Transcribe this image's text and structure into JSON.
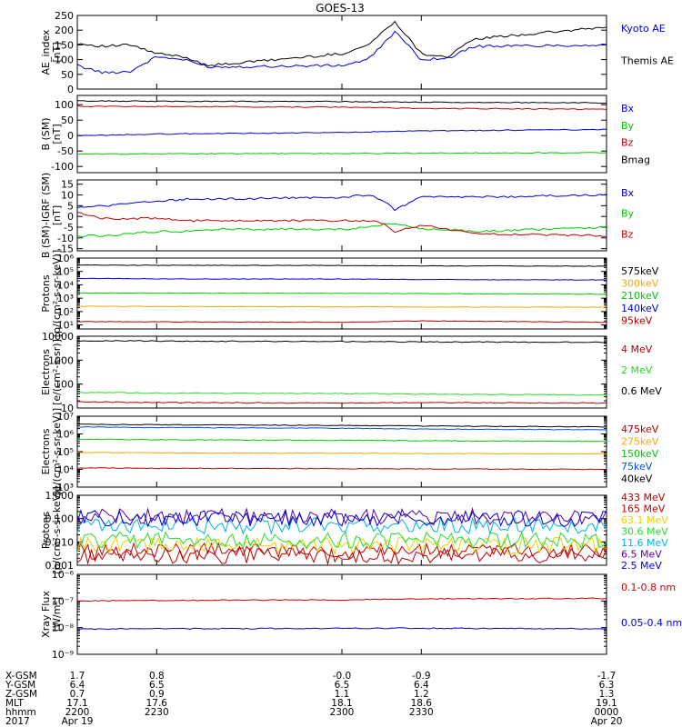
{
  "title": "GOES-13",
  "colors": {
    "black": "#000000",
    "blue": "#0000d8",
    "red": "#c80000",
    "green": "#00c800",
    "orange": "#ffa500",
    "cyan": "#00b4e6",
    "yellow": "#e6d200",
    "purple": "#5a00a0",
    "darkred": "#b40000",
    "lightgreen": "#28dc28",
    "royal": "#0050e6"
  },
  "footer": {
    "rows": [
      {
        "label": "X-GSM",
        "values": [
          "1.7",
          "0.8",
          "-0.0",
          "-0.9",
          "-1.7"
        ]
      },
      {
        "label": "Y-GSM",
        "values": [
          "6.4",
          "6.5",
          "6.5",
          "6.4",
          "6.3"
        ]
      },
      {
        "label": "Z-GSM",
        "values": [
          "0.7",
          "0.9",
          "1.1",
          "1.2",
          "1.3"
        ]
      },
      {
        "label": "MLT",
        "values": [
          "17.1",
          "17.6",
          "18.1",
          "18.6",
          "19.1"
        ]
      },
      {
        "label": "hhmm",
        "values": [
          "2200",
          "2230",
          "2300",
          "2330",
          "0000"
        ]
      },
      {
        "label": "2017",
        "values": [
          "Apr 19",
          "",
          "",
          "",
          "Apr 20"
        ]
      }
    ]
  },
  "chart_data": [
    {
      "type": "line",
      "ylabel": "AE_index [nT]",
      "scale": "linear",
      "ylim": [
        0,
        250
      ],
      "ticks": [
        0,
        50,
        100,
        150,
        200,
        250
      ],
      "tick_labels": [
        "0",
        "50",
        "100",
        "150",
        "200",
        "250"
      ],
      "x": [
        2200,
        2210,
        2220,
        2230,
        2240,
        2250,
        2300,
        2310,
        2320,
        2330,
        2340,
        2350,
        2400
      ],
      "series": [
        {
          "name": "Kyoto AE",
          "color": "blue",
          "values": [
            80,
            55,
            60,
            110,
            100,
            75,
            80,
            100,
            195,
            100,
            105,
            145,
            150
          ]
        },
        {
          "name": "Themis AE",
          "color": "black",
          "values": [
            155,
            145,
            150,
            120,
            110,
            80,
            120,
            150,
            230,
            120,
            110,
            170,
            210
          ]
        }
      ]
    },
    {
      "type": "line",
      "ylabel": "B (SM) [nT]",
      "scale": "linear",
      "ylim": [
        -120,
        130
      ],
      "ticks": [
        -100,
        -50,
        0,
        50,
        100
      ],
      "tick_labels": [
        "-100",
        "-50",
        "0",
        "50",
        "100"
      ],
      "x": [
        2200,
        2230,
        2300,
        2330,
        2400
      ],
      "series": [
        {
          "name": "Bx",
          "color": "blue",
          "values": [
            -1,
            5,
            10,
            15,
            20
          ]
        },
        {
          "name": "By",
          "color": "green",
          "values": [
            -60,
            -59,
            -58,
            -57,
            -55
          ]
        },
        {
          "name": "Bz",
          "color": "red",
          "values": [
            95,
            94,
            92,
            88,
            85
          ]
        },
        {
          "name": "Bmag",
          "color": "black",
          "values": [
            112,
            111,
            110,
            108,
            106
          ]
        }
      ]
    },
    {
      "type": "line",
      "ylabel": "B (SM)-IGRF (SM) [nT]",
      "scale": "linear",
      "ylim": [
        -16,
        17
      ],
      "ticks": [
        -15,
        -10,
        -5,
        0,
        5,
        10,
        15
      ],
      "tick_labels": [
        "-15",
        "-10",
        "-5",
        "0",
        "5",
        "10",
        "15"
      ],
      "x": [
        2200,
        2210,
        2220,
        2230,
        2240,
        2250,
        2300,
        2310,
        2315,
        2320,
        2330,
        2340,
        2350,
        2400
      ],
      "series": [
        {
          "name": "Bx",
          "color": "blue",
          "values": [
            4,
            5,
            6,
            7,
            8,
            8,
            9,
            10,
            8,
            3,
            9,
            9,
            9,
            10
          ]
        },
        {
          "name": "By",
          "color": "green",
          "values": [
            -9,
            -9,
            -8,
            -7,
            -7,
            -6,
            -6,
            -5,
            -4,
            -3,
            -6,
            -6,
            -7,
            -5
          ]
        },
        {
          "name": "Bz",
          "color": "red",
          "values": [
            2,
            -1,
            -1,
            -1,
            -2,
            -2,
            -2,
            -2,
            -3,
            -7,
            -4,
            -6,
            -8,
            -9
          ]
        }
      ]
    },
    {
      "type": "line",
      "ylabel": "Protons [p/(cm²-s-sr-keV)]",
      "scale": "log",
      "ylim": [
        5,
        1000000
      ],
      "ticks": [
        10,
        100,
        1000,
        10000,
        100000,
        1000000
      ],
      "tick_labels": [
        "10¹",
        "10²",
        "10³",
        "10⁴",
        "10⁵",
        "10⁶"
      ],
      "x": [
        2200,
        2230,
        2300,
        2330,
        2400
      ],
      "series": [
        {
          "name": "575keV",
          "color": "black",
          "values": [
            300000,
            290000,
            280000,
            260000,
            250000
          ]
        },
        {
          "name": "300keV",
          "color": "orange",
          "values": [
            250,
            240,
            230,
            220,
            210
          ]
        },
        {
          "name": "210keV",
          "color": "green",
          "values": [
            2500,
            2400,
            2300,
            2200,
            2000
          ]
        },
        {
          "name": "140keV",
          "color": "blue",
          "values": [
            30000,
            28000,
            27000,
            25000,
            23000
          ]
        },
        {
          "name": "95keV",
          "color": "darkred",
          "values": [
            18,
            17,
            16,
            20,
            16
          ]
        }
      ]
    },
    {
      "type": "line",
      "ylabel": "Electrons [e/(cm²-s-sr)]",
      "scale": "log",
      "ylim": [
        10,
        10000
      ],
      "ticks": [
        10,
        100,
        1000,
        10000
      ],
      "tick_labels": [
        "10",
        "100",
        "1000",
        "10000"
      ],
      "x": [
        2200,
        2230,
        2300,
        2330,
        2400
      ],
      "series": [
        {
          "name": "4 MeV",
          "color": "darkred",
          "values": [
            18,
            17,
            16,
            17,
            16
          ]
        },
        {
          "name": "2 MeV",
          "color": "lightgreen",
          "values": [
            45,
            42,
            40,
            38,
            35
          ]
        },
        {
          "name": "0.6 MeV",
          "color": "black",
          "values": [
            6500,
            6300,
            6000,
            5800,
            5600
          ]
        }
      ]
    },
    {
      "type": "line",
      "ylabel": "Electrons [e/(cm²-s-sr-keV)]",
      "scale": "log",
      "ylim": [
        1000,
        10000000
      ],
      "ticks": [
        1000,
        10000,
        100000,
        1000000,
        10000000
      ],
      "tick_labels": [
        "10³",
        "10⁴",
        "10⁵",
        "10⁶",
        "10⁷"
      ],
      "x": [
        2200,
        2230,
        2300,
        2330,
        2400
      ],
      "series": [
        {
          "name": "475keV",
          "color": "darkred",
          "values": [
            12000,
            11500,
            11000,
            10500,
            10000
          ]
        },
        {
          "name": "275keV",
          "color": "orange",
          "values": [
            90000,
            85000,
            82000,
            78000,
            75000
          ]
        },
        {
          "name": "150keV",
          "color": "green",
          "values": [
            500000,
            470000,
            440000,
            410000,
            380000
          ]
        },
        {
          "name": "75keV",
          "color": "royal",
          "values": [
            2500000,
            2300000,
            2100000,
            1900000,
            1700000
          ]
        },
        {
          "name": "40keV",
          "color": "black",
          "values": [
            3500000,
            3300000,
            3000000,
            2800000,
            2500000
          ]
        }
      ]
    },
    {
      "type": "line",
      "ylabel": "Protons [p/(cm²-s-sr-keV)]",
      "scale": "log",
      "ylim": [
        0.001,
        1
      ],
      "ticks": [
        0.001,
        0.01,
        0.1,
        1
      ],
      "tick_labels": [
        "0.001",
        "0.010",
        "0.100",
        "1.000"
      ],
      "x": [
        2200,
        2230,
        2300,
        2330,
        2400
      ],
      "series": [
        {
          "name": "433 MeV",
          "color": "darkred",
          "values": [
            0.0025,
            0.0025,
            0.0025,
            0.0025,
            0.0025
          ]
        },
        {
          "name": "165 MeV",
          "color": "red",
          "values": [
            0.004,
            0.004,
            0.004,
            0.004,
            0.004
          ]
        },
        {
          "name": "63.1 MeV",
          "color": "yellow",
          "values": [
            0.007,
            0.007,
            0.007,
            0.007,
            0.007
          ]
        },
        {
          "name": "30.6 MeV",
          "color": "lightgreen",
          "values": [
            0.012,
            0.012,
            0.012,
            0.012,
            0.012
          ]
        },
        {
          "name": "11.6 MeV",
          "color": "cyan",
          "values": [
            0.05,
            0.05,
            0.05,
            0.05,
            0.05
          ]
        },
        {
          "name": "6.5 MeV",
          "color": "purple",
          "values": [
            0.12,
            0.12,
            0.12,
            0.12,
            0.12
          ]
        },
        {
          "name": "2.5 MeV",
          "color": "blue",
          "values": [
            0.1,
            0.1,
            0.1,
            0.1,
            0.1
          ]
        }
      ]
    },
    {
      "type": "line",
      "ylabel": "Xray Flux [W/m²]",
      "scale": "log",
      "ylim": [
        1e-09,
        1e-06
      ],
      "ticks": [
        1e-09,
        1e-08,
        1e-07,
        1e-06
      ],
      "tick_labels": [
        "10⁻⁹",
        "10⁻⁸",
        "10⁻⁷",
        "10⁻⁶"
      ],
      "x": [
        2200,
        2230,
        2300,
        2330,
        2400
      ],
      "series": [
        {
          "name": "0.1-0.8 nm",
          "color": "red",
          "values": [
            1e-07,
            1.05e-07,
            1.1e-07,
            1.2e-07,
            1.25e-07
          ]
        },
        {
          "name": "0.05-0.4 nm",
          "color": "blue",
          "values": [
            9e-09,
            9e-09,
            9.5e-09,
            9.5e-09,
            9e-09
          ]
        }
      ]
    }
  ]
}
